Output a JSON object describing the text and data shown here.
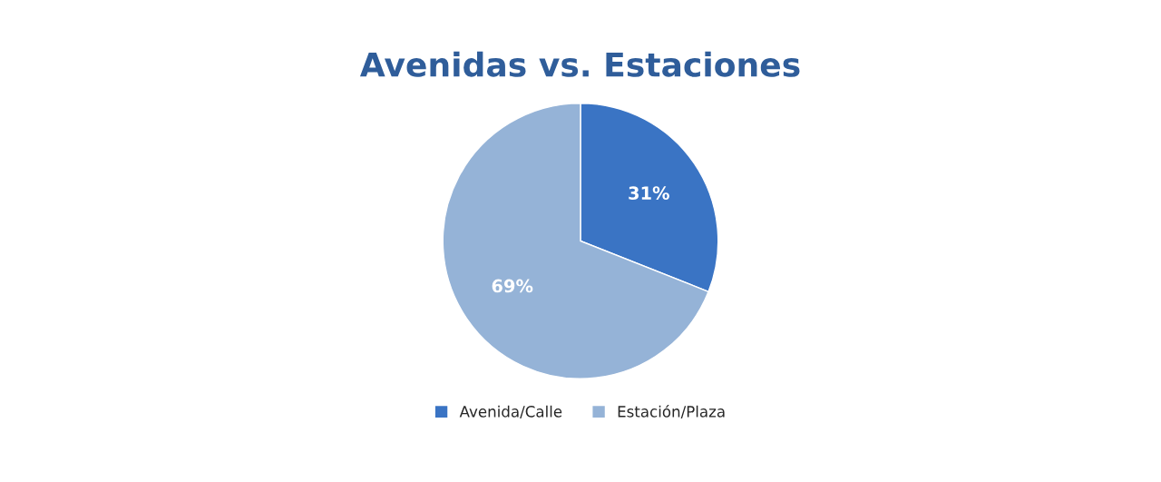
{
  "chart_data": {
    "type": "pie",
    "title": "Avenidas vs. Estaciones",
    "categories": [
      "Avenida/Calle",
      "Estación/Plaza"
    ],
    "values": [
      31,
      69
    ],
    "colors": [
      "#3a74c4",
      "#95b3d7"
    ],
    "value_labels": [
      "31%",
      "69%"
    ],
    "legend": "bottom"
  }
}
